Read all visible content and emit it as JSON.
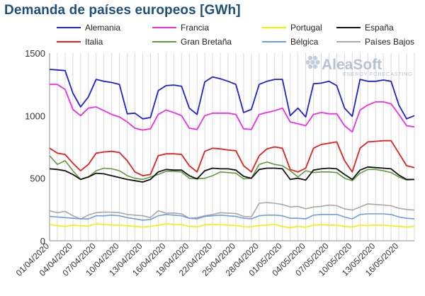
{
  "header": {
    "title": "Demanda de países europeos [GWh]"
  },
  "logo": {
    "name": "AleaSoft",
    "tagline": "ENERGY FORECASTING"
  },
  "colors": {
    "Alemania": "#1f1fd6",
    "Francia": "#ee2ee8",
    "Portugal": "#f2f200",
    "España": "#111111",
    "Italia": "#e52020",
    "Gran Bretaña": "#5f9b3c",
    "Bélgica": "#6f9fd8",
    "Países Bajos": "#a8a8a8"
  },
  "chart_data": {
    "type": "line",
    "title": "Demanda de países europeos [GWh]",
    "xlabel": "",
    "ylabel": "",
    "ylim": [
      0,
      1500
    ],
    "yticks": [
      0,
      500,
      1000,
      1500
    ],
    "grid": "vertical",
    "legend_position": "top",
    "x_start": "01/04/2020",
    "x": [
      "01/04",
      "02/04",
      "03/04",
      "04/04",
      "05/04",
      "06/04",
      "07/04",
      "08/04",
      "09/04",
      "10/04",
      "11/04",
      "12/04",
      "13/04",
      "14/04",
      "15/04",
      "16/04",
      "17/04",
      "18/04",
      "19/04",
      "20/04",
      "21/04",
      "22/04",
      "23/04",
      "24/04",
      "25/04",
      "26/04",
      "27/04",
      "28/04",
      "29/04",
      "30/04",
      "01/05",
      "02/05",
      "03/05",
      "04/05",
      "05/05",
      "06/05",
      "07/05",
      "08/05",
      "09/05",
      "10/05",
      "11/05",
      "12/05",
      "13/05",
      "14/05",
      "15/05",
      "16/05",
      "17/05",
      "18/05"
    ],
    "xtick_labels": [
      "01/04/2020",
      "04/04/2020",
      "07/04/2020",
      "10/04/2020",
      "13/04/2020",
      "16/04/2020",
      "19/04/2020",
      "22/04/2020",
      "25/04/2020",
      "28/04/2020",
      "01/05/2020",
      "04/05/2020",
      "07/05/2020",
      "10/05/2020",
      "13/05/2020",
      "16/05/2020"
    ],
    "series": [
      {
        "name": "Alemania",
        "values": [
          1370,
          1365,
          1360,
          1180,
          1070,
          1150,
          1290,
          1275,
          1265,
          1250,
          1015,
          1020,
          975,
          985,
          1200,
          1240,
          1245,
          1235,
          1060,
          1010,
          1270,
          1310,
          1295,
          1275,
          1250,
          1025,
          1050,
          1250,
          1275,
          1290,
          1290,
          1000,
          1060,
          990,
          1255,
          1260,
          1275,
          1240,
          1060,
          995,
          1290,
          1275,
          1275,
          1285,
          1275,
          1085,
          975,
          1000
        ]
      },
      {
        "name": "Francia",
        "values": [
          1250,
          1250,
          1210,
          1050,
          1000,
          1060,
          1070,
          1040,
          1010,
          990,
          950,
          900,
          885,
          895,
          1010,
          1045,
          1025,
          1000,
          900,
          890,
          1000,
          1020,
          1020,
          1020,
          1010,
          895,
          890,
          1010,
          1025,
          1040,
          1060,
          950,
          935,
          920,
          1010,
          1025,
          1015,
          1015,
          920,
          870,
          1045,
          1085,
          1110,
          1110,
          1095,
          1010,
          920,
          910
        ]
      },
      {
        "name": "Portugal",
        "values": [
          130,
          120,
          115,
          125,
          120,
          118,
          135,
          130,
          125,
          125,
          120,
          115,
          110,
          115,
          125,
          135,
          130,
          128,
          115,
          112,
          125,
          130,
          128,
          125,
          122,
          113,
          112,
          122,
          125,
          130,
          115,
          105,
          115,
          108,
          125,
          128,
          125,
          125,
          115,
          110,
          125,
          122,
          125,
          125,
          120,
          115,
          110,
          115
        ]
      },
      {
        "name": "España",
        "values": [
          575,
          570,
          560,
          530,
          490,
          510,
          540,
          535,
          520,
          505,
          490,
          480,
          470,
          490,
          550,
          570,
          565,
          565,
          520,
          495,
          560,
          580,
          575,
          575,
          565,
          515,
          500,
          570,
          580,
          580,
          575,
          490,
          500,
          485,
          565,
          575,
          580,
          575,
          530,
          490,
          565,
          590,
          585,
          580,
          575,
          525,
          490,
          490
        ]
      },
      {
        "name": "Italia",
        "values": [
          740,
          700,
          690,
          620,
          560,
          610,
          700,
          710,
          715,
          705,
          640,
          550,
          520,
          530,
          680,
          695,
          695,
          690,
          600,
          550,
          715,
          740,
          735,
          725,
          720,
          600,
          550,
          680,
          735,
          750,
          740,
          570,
          550,
          580,
          740,
          770,
          780,
          790,
          640,
          550,
          740,
          790,
          795,
          800,
          800,
          700,
          600,
          585
        ]
      },
      {
        "name": "Gran Bretaña",
        "values": [
          680,
          610,
          640,
          560,
          490,
          510,
          560,
          580,
          575,
          560,
          520,
          500,
          490,
          510,
          530,
          555,
          555,
          550,
          500,
          495,
          500,
          520,
          550,
          545,
          540,
          495,
          500,
          610,
          630,
          610,
          600,
          560,
          510,
          560,
          545,
          550,
          550,
          545,
          500,
          480,
          540,
          570,
          570,
          560,
          545,
          510,
          485,
          490
        ]
      },
      {
        "name": "Bélgica",
        "values": [
          195,
          190,
          185,
          180,
          175,
          175,
          200,
          200,
          205,
          200,
          185,
          175,
          165,
          170,
          200,
          210,
          205,
          200,
          180,
          175,
          195,
          200,
          205,
          200,
          195,
          180,
          175,
          200,
          205,
          205,
          200,
          180,
          180,
          175,
          205,
          210,
          210,
          210,
          190,
          175,
          210,
          215,
          215,
          215,
          210,
          190,
          180,
          175
        ]
      },
      {
        "name": "Países Bajos",
        "values": [
          240,
          225,
          235,
          200,
          175,
          205,
          225,
          230,
          228,
          225,
          210,
          205,
          200,
          185,
          240,
          220,
          222,
          215,
          180,
          185,
          200,
          210,
          225,
          220,
          218,
          195,
          190,
          300,
          305,
          300,
          290,
          270,
          275,
          255,
          270,
          275,
          285,
          280,
          255,
          245,
          270,
          295,
          290,
          285,
          280,
          260,
          250,
          245
        ]
      }
    ]
  }
}
